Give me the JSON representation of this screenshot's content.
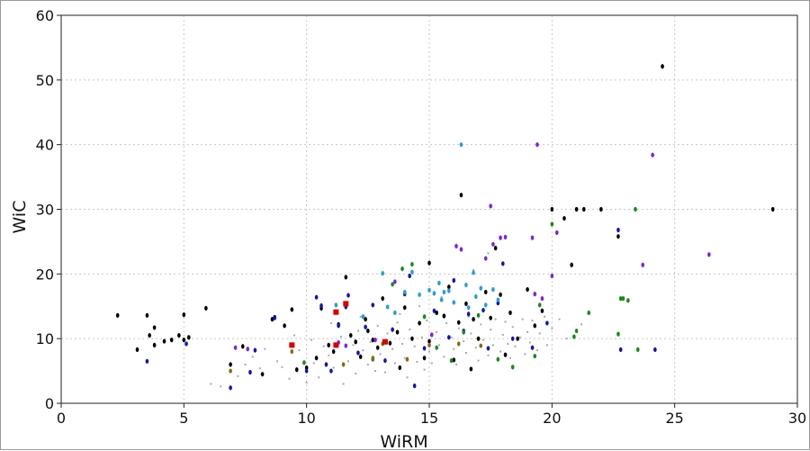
{
  "chart_data": {
    "type": "scatter",
    "title": "",
    "xlabel": "WiRM",
    "ylabel": "WiC",
    "xlim": [
      0,
      30
    ],
    "ylim": [
      0,
      60
    ],
    "x_ticks": [
      0,
      5,
      10,
      15,
      20,
      25,
      30
    ],
    "y_ticks": [
      0,
      10,
      20,
      30,
      40,
      50,
      60
    ],
    "grid": true,
    "legend": "none",
    "series": [
      {
        "color": "#000000",
        "points": [
          [
            2.3,
            13.6
          ],
          [
            3.1,
            8.3
          ],
          [
            3.5,
            13.6
          ],
          [
            3.6,
            10.5
          ],
          [
            3.8,
            11.7
          ],
          [
            3.8,
            9.0
          ],
          [
            4.2,
            9.6
          ],
          [
            4.5,
            9.8
          ],
          [
            4.8,
            10.5
          ],
          [
            5.0,
            9.8
          ],
          [
            5.2,
            10.2
          ],
          [
            5.0,
            13.7
          ],
          [
            5.9,
            14.7
          ],
          [
            6.9,
            6.0
          ],
          [
            7.4,
            8.8
          ],
          [
            8.2,
            4.5
          ],
          [
            8.6,
            13.0
          ],
          [
            8.7,
            13.3
          ],
          [
            9.1,
            12.0
          ],
          [
            9.4,
            14.5
          ],
          [
            9.6,
            5.2
          ],
          [
            10.0,
            5.5
          ],
          [
            10.4,
            7.0
          ],
          [
            10.6,
            14.7
          ],
          [
            10.9,
            9.0
          ],
          [
            11.1,
            8.0
          ],
          [
            11.3,
            12.2
          ],
          [
            11.6,
            19.5
          ],
          [
            11.8,
            10.5
          ],
          [
            12.0,
            9.5
          ],
          [
            12.2,
            7.2
          ],
          [
            12.4,
            13.0
          ],
          [
            12.5,
            11.2
          ],
          [
            12.7,
            9.8
          ],
          [
            12.9,
            8.6
          ],
          [
            13.1,
            16.2
          ],
          [
            13.4,
            9.3
          ],
          [
            13.7,
            11.0
          ],
          [
            13.8,
            5.5
          ],
          [
            14.0,
            14.8
          ],
          [
            14.3,
            10.0
          ],
          [
            14.6,
            12.4
          ],
          [
            14.8,
            7.0
          ],
          [
            15.0,
            9.6
          ],
          [
            15.0,
            21.7
          ],
          [
            15.3,
            14.0
          ],
          [
            15.6,
            13.5
          ],
          [
            15.8,
            18.0
          ],
          [
            16.0,
            6.7
          ],
          [
            16.2,
            12.5
          ],
          [
            16.3,
            32.2
          ],
          [
            16.5,
            15.4
          ],
          [
            16.7,
            5.3
          ],
          [
            16.8,
            13.0
          ],
          [
            17.0,
            10.0
          ],
          [
            17.3,
            17.2
          ],
          [
            17.5,
            13.2
          ],
          [
            17.7,
            24.0
          ],
          [
            17.9,
            16.8
          ],
          [
            18.1,
            7.5
          ],
          [
            18.3,
            14.0
          ],
          [
            18.6,
            10.0
          ],
          [
            19.0,
            17.6
          ],
          [
            19.3,
            12.0
          ],
          [
            19.6,
            14.3
          ],
          [
            20.0,
            30.0
          ],
          [
            20.5,
            28.6
          ],
          [
            20.8,
            21.4
          ],
          [
            21.0,
            30.0
          ],
          [
            21.3,
            30.0
          ],
          [
            22.0,
            30.0
          ],
          [
            22.7,
            25.8
          ],
          [
            24.5,
            52.1
          ],
          [
            29.0,
            30.0
          ]
        ]
      },
      {
        "color": "#1010d0",
        "points": [
          [
            3.5,
            6.5
          ],
          [
            5.1,
            9.2
          ],
          [
            6.9,
            2.4
          ],
          [
            7.7,
            4.8
          ],
          [
            7.9,
            8.2
          ],
          [
            8.7,
            13.2
          ],
          [
            10.0,
            5.0
          ],
          [
            10.4,
            16.4
          ],
          [
            10.6,
            15.1
          ],
          [
            10.8,
            6.0
          ],
          [
            11.0,
            5.0
          ],
          [
            11.3,
            12.0
          ],
          [
            11.6,
            14.9
          ],
          [
            11.7,
            16.7
          ],
          [
            12.1,
            7.8
          ],
          [
            12.4,
            11.8
          ],
          [
            12.7,
            15.2
          ],
          [
            13.2,
            6.6
          ],
          [
            13.5,
            11.4
          ],
          [
            14.0,
            16.9
          ],
          [
            14.2,
            19.7
          ],
          [
            14.4,
            2.7
          ],
          [
            14.8,
            8.5
          ],
          [
            15.2,
            14.3
          ],
          [
            15.8,
            10.2
          ],
          [
            16.0,
            19.0
          ],
          [
            16.4,
            11.2
          ],
          [
            16.6,
            13.8
          ],
          [
            17.2,
            14.4
          ],
          [
            17.4,
            8.5
          ],
          [
            17.8,
            15.5
          ],
          [
            18.0,
            21.6
          ],
          [
            18.4,
            10.0
          ],
          [
            19.2,
            8.6
          ],
          [
            19.8,
            12.4
          ],
          [
            22.8,
            8.3
          ],
          [
            22.7,
            26.8
          ],
          [
            24.2,
            8.3
          ]
        ]
      },
      {
        "color": "#8020f0",
        "points": [
          [
            7.1,
            8.6
          ],
          [
            7.6,
            8.4
          ],
          [
            11.3,
            9.4
          ],
          [
            11.6,
            8.9
          ],
          [
            12.8,
            9.8
          ],
          [
            13.6,
            18.8
          ],
          [
            15.1,
            10.6
          ],
          [
            16.1,
            24.3
          ],
          [
            16.3,
            23.8
          ],
          [
            17.3,
            22.4
          ],
          [
            17.5,
            30.5
          ],
          [
            17.6,
            24.6
          ],
          [
            17.9,
            25.6
          ],
          [
            18.1,
            25.7
          ],
          [
            19.2,
            25.6
          ],
          [
            19.4,
            40.0
          ],
          [
            19.6,
            16.2
          ],
          [
            19.3,
            16.9
          ],
          [
            20.0,
            19.7
          ],
          [
            20.2,
            26.4
          ],
          [
            23.7,
            21.4
          ],
          [
            24.1,
            38.4
          ],
          [
            26.4,
            23.0
          ]
        ]
      },
      {
        "color": "#20a0e0",
        "points": [
          [
            11.2,
            15.2
          ],
          [
            12.3,
            13.4
          ],
          [
            13.1,
            20.1
          ],
          [
            13.3,
            14.9
          ],
          [
            13.6,
            14.0
          ],
          [
            14.0,
            17.2
          ],
          [
            14.3,
            20.3
          ],
          [
            14.6,
            16.8
          ],
          [
            15.0,
            17.5
          ],
          [
            15.2,
            17.0
          ],
          [
            15.4,
            18.6
          ],
          [
            15.5,
            16.0
          ],
          [
            15.8,
            17.4
          ],
          [
            16.0,
            15.6
          ],
          [
            16.3,
            40.0
          ],
          [
            16.5,
            18.3
          ],
          [
            16.6,
            14.8
          ],
          [
            16.8,
            20.2
          ],
          [
            16.9,
            16.5
          ],
          [
            17.1,
            17.8
          ],
          [
            17.3,
            15.2
          ],
          [
            17.6,
            17.6
          ],
          [
            17.8,
            16.0
          ],
          [
            15.6,
            17.2
          ]
        ]
      },
      {
        "color": "#109010",
        "points": [
          [
            9.9,
            6.3
          ],
          [
            12.7,
            6.8
          ],
          [
            13.5,
            18.4
          ],
          [
            13.9,
            20.8
          ],
          [
            14.3,
            21.5
          ],
          [
            14.8,
            13.4
          ],
          [
            15.3,
            8.6
          ],
          [
            15.9,
            6.6
          ],
          [
            16.4,
            11.0
          ],
          [
            17.0,
            13.6
          ],
          [
            17.8,
            6.8
          ],
          [
            18.4,
            5.6
          ],
          [
            19.3,
            7.3
          ],
          [
            19.5,
            15.2
          ],
          [
            20.0,
            27.7
          ],
          [
            20.9,
            10.3
          ],
          [
            21.0,
            11.2
          ],
          [
            21.5,
            14.0
          ],
          [
            22.7,
            10.7
          ],
          [
            22.8,
            16.2
          ],
          [
            22.9,
            16.2
          ],
          [
            23.1,
            15.9
          ],
          [
            23.4,
            30.0
          ],
          [
            23.5,
            8.3
          ]
        ]
      },
      {
        "color": "#8a6a10",
        "points": [
          [
            6.9,
            5.0
          ],
          [
            9.4,
            8.0
          ],
          [
            11.5,
            6.0
          ],
          [
            12.7,
            7.0
          ],
          [
            13.1,
            9.2
          ],
          [
            14.1,
            6.8
          ],
          [
            15.0,
            9.0
          ],
          [
            16.2,
            9.2
          ],
          [
            17.1,
            8.9
          ]
        ]
      },
      {
        "color": "#e00000",
        "points": [
          [
            9.4,
            9.0
          ],
          [
            11.2,
            9.0
          ],
          [
            11.2,
            14.1
          ],
          [
            11.6,
            15.4
          ],
          [
            13.2,
            9.5
          ]
        ]
      },
      {
        "color": "#a8a8a8",
        "points": [
          [
            6.1,
            3.0
          ],
          [
            6.5,
            2.6
          ],
          [
            7.2,
            4.2
          ],
          [
            7.8,
            7.2
          ],
          [
            8.3,
            8.4
          ],
          [
            8.8,
            6.5
          ],
          [
            9.0,
            5.6
          ],
          [
            9.3,
            3.8
          ],
          [
            9.5,
            10.5
          ],
          [
            9.7,
            8.2
          ],
          [
            10.0,
            3.2
          ],
          [
            10.2,
            9.8
          ],
          [
            10.3,
            6.2
          ],
          [
            10.5,
            4.0
          ],
          [
            10.7,
            8.8
          ],
          [
            10.9,
            7.4
          ],
          [
            11.1,
            5.5
          ],
          [
            11.4,
            10.3
          ],
          [
            11.5,
            3.0
          ],
          [
            11.7,
            6.5
          ],
          [
            11.9,
            9.0
          ],
          [
            12.0,
            4.6
          ],
          [
            12.1,
            11.2
          ],
          [
            12.3,
            8.2
          ],
          [
            12.5,
            6.0
          ],
          [
            12.6,
            9.5
          ],
          [
            12.8,
            5.0
          ],
          [
            12.9,
            12.0
          ],
          [
            13.0,
            7.6
          ],
          [
            13.2,
            4.8
          ],
          [
            13.3,
            10.8
          ],
          [
            13.5,
            8.4
          ],
          [
            13.6,
            6.2
          ],
          [
            13.7,
            12.5
          ],
          [
            13.9,
            9.2
          ],
          [
            14.0,
            7.0
          ],
          [
            14.1,
            4.0
          ],
          [
            14.2,
            11.4
          ],
          [
            14.4,
            8.8
          ],
          [
            14.5,
            6.4
          ],
          [
            14.7,
            10.2
          ],
          [
            14.8,
            5.2
          ],
          [
            14.9,
            12.8
          ],
          [
            15.0,
            8.0
          ],
          [
            15.1,
            6.2
          ],
          [
            15.3,
            11.0
          ],
          [
            15.4,
            9.0
          ],
          [
            15.6,
            7.2
          ],
          [
            15.7,
            12.4
          ],
          [
            15.9,
            10.2
          ],
          [
            16.0,
            8.4
          ],
          [
            16.1,
            6.0
          ],
          [
            16.2,
            11.6
          ],
          [
            16.4,
            9.6
          ],
          [
            16.5,
            7.8
          ],
          [
            16.6,
            13.4
          ],
          [
            16.7,
            10.8
          ],
          [
            16.9,
            8.6
          ],
          [
            17.0,
            6.6
          ],
          [
            17.1,
            12.2
          ],
          [
            17.2,
            9.8
          ],
          [
            17.4,
            7.4
          ],
          [
            17.5,
            11.4
          ],
          [
            17.6,
            9.0
          ],
          [
            17.7,
            13.0
          ],
          [
            17.9,
            8.0
          ],
          [
            18.0,
            10.6
          ],
          [
            18.1,
            12.6
          ],
          [
            18.2,
            9.2
          ],
          [
            18.3,
            7.0
          ],
          [
            18.4,
            11.8
          ],
          [
            18.5,
            8.8
          ],
          [
            18.7,
            10.2
          ],
          [
            18.8,
            13.0
          ],
          [
            18.9,
            7.6
          ],
          [
            19.0,
            11.0
          ],
          [
            19.1,
            9.4
          ],
          [
            19.2,
            12.8
          ],
          [
            19.4,
            8.2
          ],
          [
            19.5,
            10.8
          ],
          [
            19.7,
            13.4
          ],
          [
            19.8,
            9.0
          ],
          [
            20.0,
            11.6
          ],
          [
            20.3,
            13.0
          ],
          [
            20.6,
            10.0
          ],
          [
            21.2,
            12.2
          ],
          [
            17.4,
            23.2
          ],
          [
            16.8,
            20.6
          ],
          [
            15.5,
            16.4
          ],
          [
            14.6,
            15.0
          ],
          [
            13.8,
            13.8
          ],
          [
            12.2,
            13.4
          ],
          [
            11.0,
            12.4
          ],
          [
            8.1,
            5.4
          ],
          [
            7.5,
            6.0
          ]
        ]
      }
    ]
  }
}
